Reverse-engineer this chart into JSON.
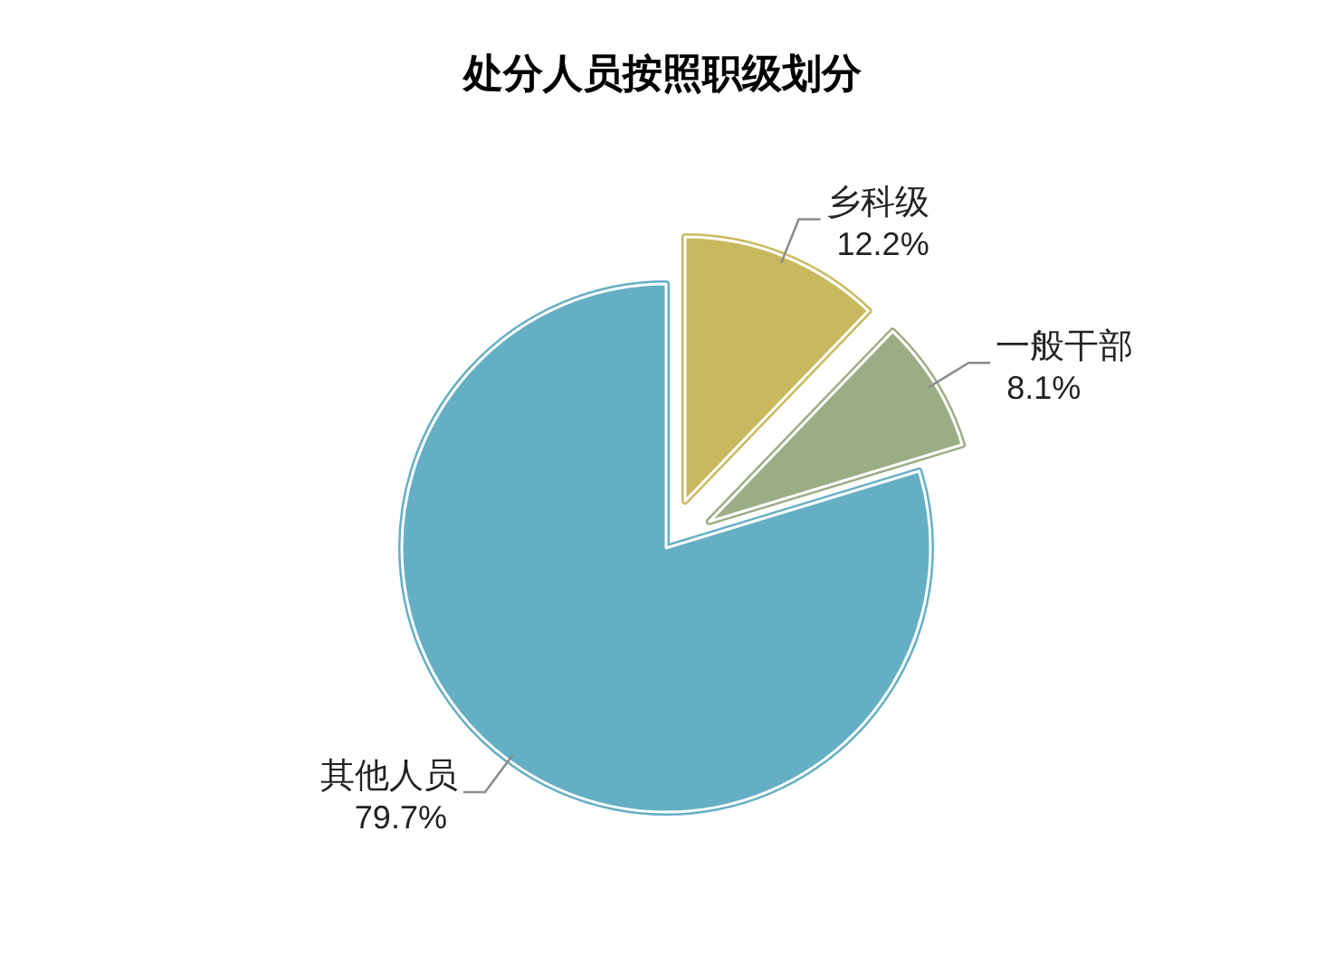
{
  "chart_data": {
    "type": "pie",
    "title": "处分人员按照职级划分",
    "categories": [
      "乡科级",
      "一般干部",
      "其他人员"
    ],
    "values": [
      12.2,
      8.1,
      79.7
    ],
    "value_labels": [
      "12.2%",
      "8.1%",
      "79.7%"
    ],
    "colors": [
      "#c9b95e",
      "#9bad84",
      "#64afc4"
    ]
  }
}
